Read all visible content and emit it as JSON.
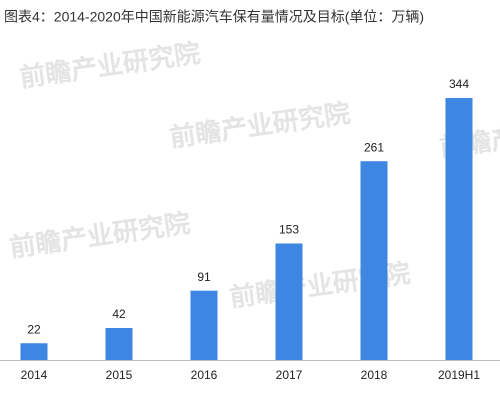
{
  "chart_data": {
    "type": "bar",
    "title": "图表4：2014-2020年中国新能源汽车保有量情况及目标(单位：万辆)",
    "categories": [
      "2014",
      "2015",
      "2016",
      "2017",
      "2018",
      "2019H1"
    ],
    "values": [
      22,
      42,
      91,
      153,
      261,
      344
    ],
    "color": "#3d87e2",
    "watermark": "前瞻产业研究院"
  }
}
